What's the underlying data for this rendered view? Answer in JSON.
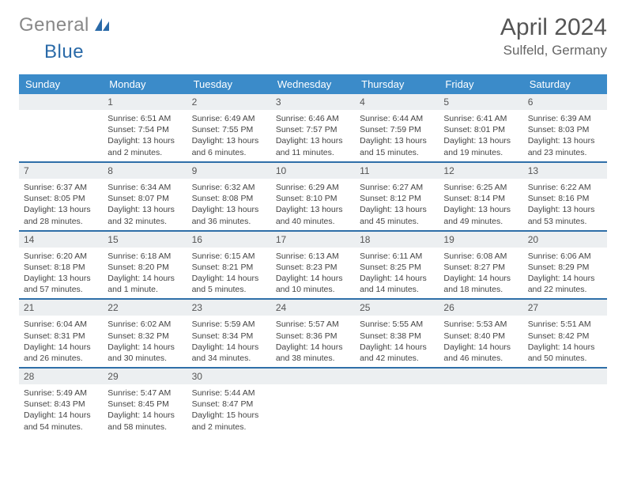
{
  "logo": {
    "text_a": "General",
    "text_b": "Blue"
  },
  "header": {
    "month": "April 2024",
    "location": "Sulfeld, Germany"
  },
  "weekdays": [
    "Sunday",
    "Monday",
    "Tuesday",
    "Wednesday",
    "Thursday",
    "Friday",
    "Saturday"
  ],
  "colors": {
    "header_bg": "#3b8bc9",
    "row_divider": "#2f6fa8",
    "daynum_bg": "#eceff1",
    "logo_blue": "#2a6aa8"
  },
  "weeks": [
    [
      {
        "n": "",
        "lines": []
      },
      {
        "n": "1",
        "lines": [
          "Sunrise: 6:51 AM",
          "Sunset: 7:54 PM",
          "Daylight: 13 hours and 2 minutes."
        ]
      },
      {
        "n": "2",
        "lines": [
          "Sunrise: 6:49 AM",
          "Sunset: 7:55 PM",
          "Daylight: 13 hours and 6 minutes."
        ]
      },
      {
        "n": "3",
        "lines": [
          "Sunrise: 6:46 AM",
          "Sunset: 7:57 PM",
          "Daylight: 13 hours and 11 minutes."
        ]
      },
      {
        "n": "4",
        "lines": [
          "Sunrise: 6:44 AM",
          "Sunset: 7:59 PM",
          "Daylight: 13 hours and 15 minutes."
        ]
      },
      {
        "n": "5",
        "lines": [
          "Sunrise: 6:41 AM",
          "Sunset: 8:01 PM",
          "Daylight: 13 hours and 19 minutes."
        ]
      },
      {
        "n": "6",
        "lines": [
          "Sunrise: 6:39 AM",
          "Sunset: 8:03 PM",
          "Daylight: 13 hours and 23 minutes."
        ]
      }
    ],
    [
      {
        "n": "7",
        "lines": [
          "Sunrise: 6:37 AM",
          "Sunset: 8:05 PM",
          "Daylight: 13 hours and 28 minutes."
        ]
      },
      {
        "n": "8",
        "lines": [
          "Sunrise: 6:34 AM",
          "Sunset: 8:07 PM",
          "Daylight: 13 hours and 32 minutes."
        ]
      },
      {
        "n": "9",
        "lines": [
          "Sunrise: 6:32 AM",
          "Sunset: 8:08 PM",
          "Daylight: 13 hours and 36 minutes."
        ]
      },
      {
        "n": "10",
        "lines": [
          "Sunrise: 6:29 AM",
          "Sunset: 8:10 PM",
          "Daylight: 13 hours and 40 minutes."
        ]
      },
      {
        "n": "11",
        "lines": [
          "Sunrise: 6:27 AM",
          "Sunset: 8:12 PM",
          "Daylight: 13 hours and 45 minutes."
        ]
      },
      {
        "n": "12",
        "lines": [
          "Sunrise: 6:25 AM",
          "Sunset: 8:14 PM",
          "Daylight: 13 hours and 49 minutes."
        ]
      },
      {
        "n": "13",
        "lines": [
          "Sunrise: 6:22 AM",
          "Sunset: 8:16 PM",
          "Daylight: 13 hours and 53 minutes."
        ]
      }
    ],
    [
      {
        "n": "14",
        "lines": [
          "Sunrise: 6:20 AM",
          "Sunset: 8:18 PM",
          "Daylight: 13 hours and 57 minutes."
        ]
      },
      {
        "n": "15",
        "lines": [
          "Sunrise: 6:18 AM",
          "Sunset: 8:20 PM",
          "Daylight: 14 hours and 1 minute."
        ]
      },
      {
        "n": "16",
        "lines": [
          "Sunrise: 6:15 AM",
          "Sunset: 8:21 PM",
          "Daylight: 14 hours and 5 minutes."
        ]
      },
      {
        "n": "17",
        "lines": [
          "Sunrise: 6:13 AM",
          "Sunset: 8:23 PM",
          "Daylight: 14 hours and 10 minutes."
        ]
      },
      {
        "n": "18",
        "lines": [
          "Sunrise: 6:11 AM",
          "Sunset: 8:25 PM",
          "Daylight: 14 hours and 14 minutes."
        ]
      },
      {
        "n": "19",
        "lines": [
          "Sunrise: 6:08 AM",
          "Sunset: 8:27 PM",
          "Daylight: 14 hours and 18 minutes."
        ]
      },
      {
        "n": "20",
        "lines": [
          "Sunrise: 6:06 AM",
          "Sunset: 8:29 PM",
          "Daylight: 14 hours and 22 minutes."
        ]
      }
    ],
    [
      {
        "n": "21",
        "lines": [
          "Sunrise: 6:04 AM",
          "Sunset: 8:31 PM",
          "Daylight: 14 hours and 26 minutes."
        ]
      },
      {
        "n": "22",
        "lines": [
          "Sunrise: 6:02 AM",
          "Sunset: 8:32 PM",
          "Daylight: 14 hours and 30 minutes."
        ]
      },
      {
        "n": "23",
        "lines": [
          "Sunrise: 5:59 AM",
          "Sunset: 8:34 PM",
          "Daylight: 14 hours and 34 minutes."
        ]
      },
      {
        "n": "24",
        "lines": [
          "Sunrise: 5:57 AM",
          "Sunset: 8:36 PM",
          "Daylight: 14 hours and 38 minutes."
        ]
      },
      {
        "n": "25",
        "lines": [
          "Sunrise: 5:55 AM",
          "Sunset: 8:38 PM",
          "Daylight: 14 hours and 42 minutes."
        ]
      },
      {
        "n": "26",
        "lines": [
          "Sunrise: 5:53 AM",
          "Sunset: 8:40 PM",
          "Daylight: 14 hours and 46 minutes."
        ]
      },
      {
        "n": "27",
        "lines": [
          "Sunrise: 5:51 AM",
          "Sunset: 8:42 PM",
          "Daylight: 14 hours and 50 minutes."
        ]
      }
    ],
    [
      {
        "n": "28",
        "lines": [
          "Sunrise: 5:49 AM",
          "Sunset: 8:43 PM",
          "Daylight: 14 hours and 54 minutes."
        ]
      },
      {
        "n": "29",
        "lines": [
          "Sunrise: 5:47 AM",
          "Sunset: 8:45 PM",
          "Daylight: 14 hours and 58 minutes."
        ]
      },
      {
        "n": "30",
        "lines": [
          "Sunrise: 5:44 AM",
          "Sunset: 8:47 PM",
          "Daylight: 15 hours and 2 minutes."
        ]
      },
      {
        "n": "",
        "lines": []
      },
      {
        "n": "",
        "lines": []
      },
      {
        "n": "",
        "lines": []
      },
      {
        "n": "",
        "lines": []
      }
    ]
  ]
}
